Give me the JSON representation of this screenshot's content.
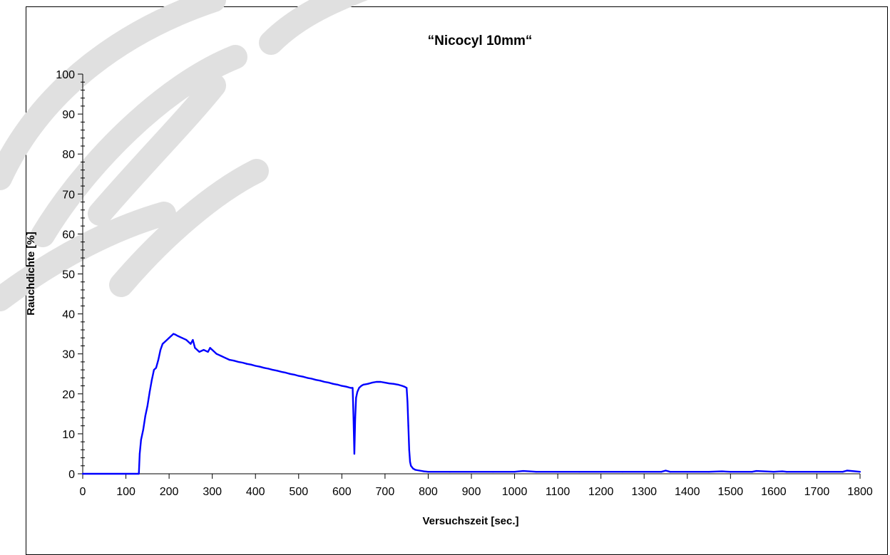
{
  "chart_data": {
    "type": "line",
    "title": "“Nicocyl 10mm“",
    "xlabel": "Versuchszeit [sec.]",
    "ylabel": "Rauchdichte [%]",
    "xlim": [
      0,
      1800
    ],
    "ylim": [
      0,
      100
    ],
    "x_ticks": [
      "0",
      "100",
      "200",
      "300",
      "400",
      "500",
      "600",
      "700",
      "800",
      "900",
      "1000",
      "1100",
      "1200",
      "1300",
      "1400",
      "1500",
      "1600",
      "1700",
      "1800"
    ],
    "y_ticks": [
      "0",
      "10",
      "20",
      "30",
      "40",
      "50",
      "60",
      "70",
      "80",
      "90",
      "100"
    ],
    "grid": false,
    "legend": "none",
    "series_color": "#0000ff",
    "x": [
      0,
      100,
      130,
      132,
      135,
      140,
      145,
      150,
      155,
      160,
      165,
      170,
      175,
      180,
      185,
      190,
      195,
      200,
      205,
      210,
      215,
      220,
      230,
      240,
      250,
      255,
      260,
      270,
      280,
      290,
      295,
      300,
      310,
      320,
      330,
      340,
      350,
      360,
      370,
      380,
      390,
      400,
      410,
      420,
      430,
      440,
      450,
      460,
      470,
      480,
      490,
      500,
      510,
      520,
      530,
      540,
      550,
      560,
      570,
      580,
      590,
      600,
      610,
      620,
      625,
      627,
      629,
      631,
      633,
      636,
      640,
      645,
      650,
      660,
      670,
      680,
      690,
      700,
      710,
      720,
      730,
      740,
      745,
      750,
      752,
      754,
      756,
      758,
      760,
      765,
      770,
      775,
      780,
      790,
      800,
      850,
      900,
      950,
      1000,
      1020,
      1050,
      1100,
      1150,
      1200,
      1250,
      1300,
      1340,
      1350,
      1360,
      1400,
      1450,
      1480,
      1500,
      1550,
      1560,
      1600,
      1620,
      1630,
      1700,
      1760,
      1770,
      1800
    ],
    "y": [
      0,
      0,
      0,
      5,
      8.5,
      11,
      14.5,
      17,
      20.5,
      23.5,
      26,
      26.5,
      28.5,
      31,
      32.5,
      33,
      33.5,
      34,
      34.5,
      35,
      34.8,
      34.5,
      34,
      33.5,
      32.5,
      33.5,
      31.5,
      30.5,
      31,
      30.5,
      31.5,
      31,
      30,
      29.5,
      29,
      28.5,
      28.3,
      28,
      27.8,
      27.5,
      27.3,
      27,
      26.8,
      26.5,
      26.3,
      26,
      25.8,
      25.5,
      25.3,
      25,
      24.8,
      24.5,
      24.3,
      24,
      23.8,
      23.5,
      23.3,
      23,
      22.8,
      22.5,
      22.3,
      22,
      21.8,
      21.5,
      21.5,
      14,
      5,
      14,
      19,
      20.5,
      21.5,
      22,
      22.3,
      22.5,
      22.8,
      23,
      23,
      22.8,
      22.6,
      22.5,
      22.3,
      22,
      21.8,
      21.5,
      18,
      12,
      6,
      3,
      2,
      1.3,
      1,
      0.9,
      0.8,
      0.6,
      0.5,
      0.5,
      0.5,
      0.5,
      0.5,
      0.7,
      0.5,
      0.5,
      0.5,
      0.5,
      0.5,
      0.5,
      0.5,
      0.8,
      0.5,
      0.5,
      0.5,
      0.6,
      0.5,
      0.5,
      0.7,
      0.5,
      0.6,
      0.5,
      0.5,
      0.5,
      0.8,
      0.5
    ]
  },
  "watermark_color": "#e0e0e0"
}
